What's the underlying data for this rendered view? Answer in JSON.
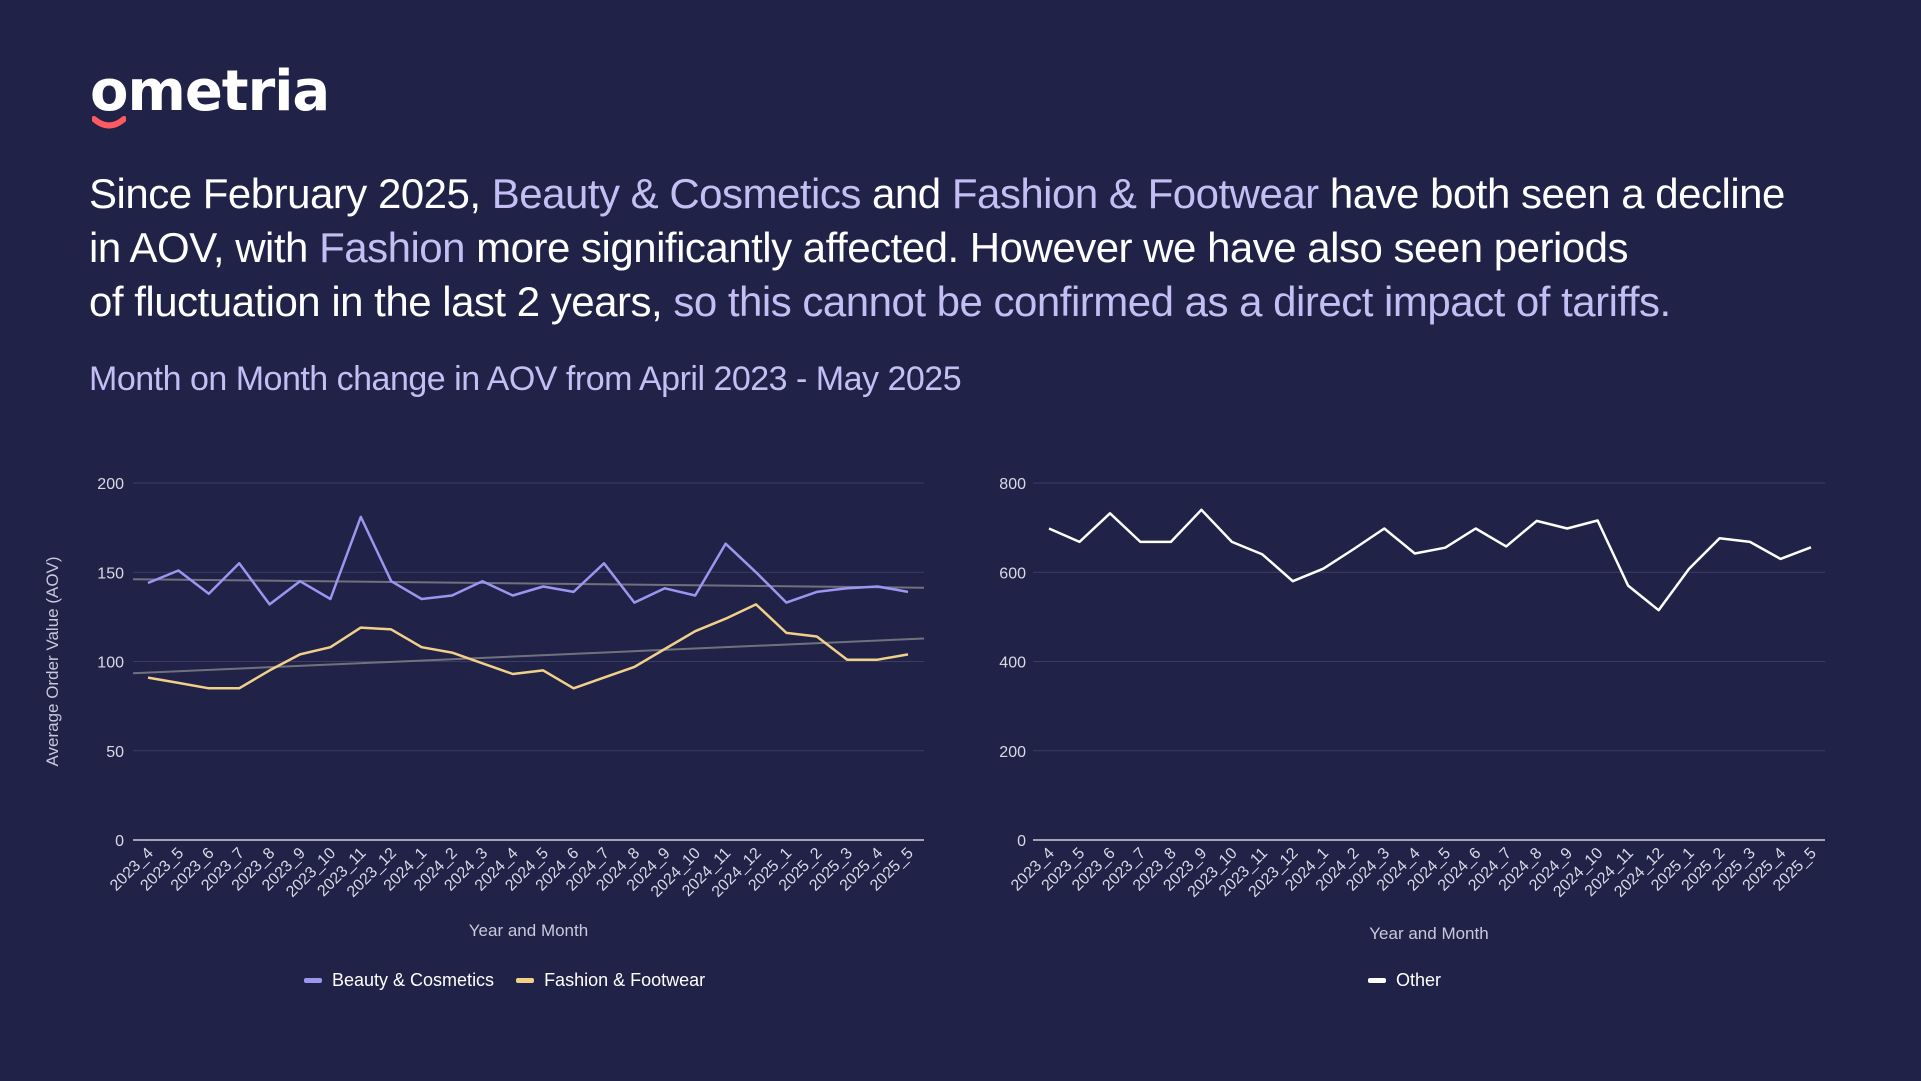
{
  "brand": {
    "logo_text": "ometria"
  },
  "headline": {
    "parts": [
      {
        "text": "Since February 2025, ",
        "highlight": false
      },
      {
        "text": "Beauty & Cosmetics",
        "highlight": true
      },
      {
        "text": " and ",
        "highlight": false
      },
      {
        "text": "Fashion & Footwear",
        "highlight": true
      },
      {
        "text": " have both seen a decline",
        "highlight": false
      },
      {
        "text": "in AOV, with ",
        "highlight": false,
        "newline_before": true
      },
      {
        "text": "Fashion",
        "highlight": true
      },
      {
        "text": " more significantly affected. However we have also seen periods",
        "highlight": false
      },
      {
        "text": "of fluctuation in the last 2 years, ",
        "highlight": false,
        "newline_before": true
      },
      {
        "text": "so this cannot be confirmed as a direct impact of tariffs.",
        "highlight": true
      }
    ]
  },
  "subtitle": "Month on Month change in AOV from April 2023 - May 2025",
  "colors": {
    "background": "#202247",
    "highlight": "#c3bff4",
    "beauty": "#9b96f0",
    "fashion": "#f2d08a",
    "other": "#ffffff",
    "trend": "#7a7a85",
    "grid": "#3a3c62",
    "logo_accent": "#ff5a5f"
  },
  "chart_data": [
    {
      "type": "line",
      "title": "",
      "xlabel": "Year and Month",
      "ylabel": "Average Order Value (AOV)",
      "ylim": [
        0,
        200
      ],
      "yticks": [
        0,
        50,
        100,
        150,
        200
      ],
      "categories": [
        "2023_4",
        "2023_5",
        "2023_6",
        "2023_7",
        "2023_8",
        "2023_9",
        "2023_10",
        "2023_11",
        "2023_12",
        "2024_1",
        "2024_2",
        "2024_3",
        "2024_4",
        "2024_5",
        "2024_6",
        "2024_7",
        "2024_8",
        "2024_9",
        "2024_10",
        "2024_11",
        "2024_12",
        "2025_1",
        "2025_2",
        "2025_3",
        "2025_4",
        "2025_5"
      ],
      "series": [
        {
          "name": "Beauty & Cosmetics",
          "color_key": "beauty",
          "values": [
            144,
            151,
            138,
            155,
            132,
            145,
            135,
            181,
            145,
            135,
            137,
            145,
            137,
            142,
            139,
            155,
            133,
            141,
            137,
            166,
            150,
            133,
            139,
            141,
            142,
            139
          ],
          "trendline": true
        },
        {
          "name": "Fashion & Footwear",
          "color_key": "fashion",
          "values": [
            91,
            88,
            85,
            85,
            95,
            104,
            108,
            119,
            118,
            108,
            105,
            99,
            93,
            95,
            85,
            91,
            97,
            107,
            117,
            124,
            132,
            116,
            114,
            101,
            101,
            104
          ],
          "trendline": true
        }
      ],
      "grid": true,
      "legend": "bottom-center"
    },
    {
      "type": "line",
      "title": "",
      "xlabel": "Year and Month",
      "ylabel": "",
      "ylim": [
        0,
        800
      ],
      "yticks": [
        0,
        200,
        400,
        600,
        800
      ],
      "categories": [
        "2023_4",
        "2023_5",
        "2023_6",
        "2023_7",
        "2023_8",
        "2023_9",
        "2023_10",
        "2023_11",
        "2023_12",
        "2024_1",
        "2024_2",
        "2024_3",
        "2024_4",
        "2024_5",
        "2024_6",
        "2024_7",
        "2024_8",
        "2024_9",
        "2024_10",
        "2024_11",
        "2024_12",
        "2025_1",
        "2025_2",
        "2025_3",
        "2025_4",
        "2025_5"
      ],
      "series": [
        {
          "name": "Other",
          "color_key": "other",
          "values": [
            698,
            668,
            732,
            668,
            668,
            740,
            668,
            640,
            580,
            608,
            652,
            698,
            642,
            655,
            698,
            658,
            715,
            698,
            716,
            570,
            515,
            608,
            676,
            668,
            630,
            656
          ],
          "trendline": false
        }
      ],
      "grid": true,
      "legend": "bottom-center"
    }
  ]
}
